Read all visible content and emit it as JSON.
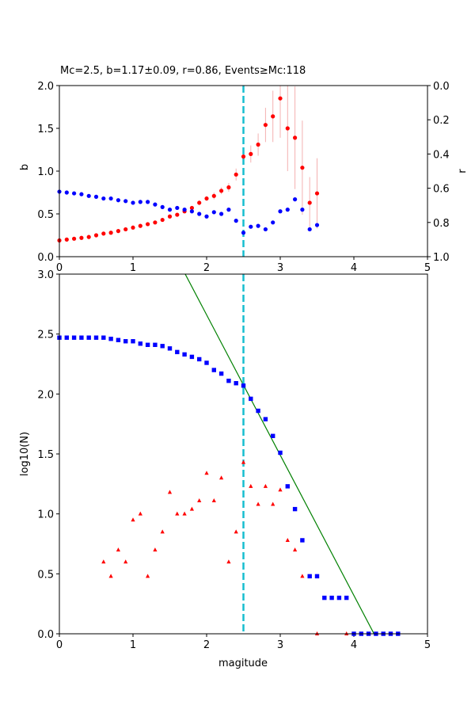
{
  "chart_data": [
    {
      "type": "scatter",
      "title": "Mc=2.5, b=1.17±0.09, r=0.86, Events≥Mc:118",
      "xlabel": "",
      "ylabel": "b",
      "ylabel_right": "r",
      "xlim": [
        0,
        5
      ],
      "ylim": [
        0,
        2.0
      ],
      "ylim_right": [
        1.0,
        0.0
      ],
      "xticks": [
        "0",
        "1",
        "2",
        "3",
        "4",
        "5"
      ],
      "yticks": [
        "0.0",
        "0.5",
        "1.0",
        "1.5",
        "2.0"
      ],
      "yticks_right": [
        "0.0",
        "0.2",
        "0.4",
        "0.6",
        "0.8",
        "1.0"
      ],
      "mc_line": 2.5,
      "colors": {
        "b": "#ff0000",
        "r": "#0000ff",
        "mc": "#17becf",
        "err": "#f4b0b0"
      },
      "x": [
        0,
        0.1,
        0.2,
        0.3,
        0.4,
        0.5,
        0.6,
        0.7,
        0.8,
        0.9,
        1.0,
        1.1,
        1.2,
        1.3,
        1.4,
        1.5,
        1.6,
        1.7,
        1.8,
        1.9,
        2.0,
        2.1,
        2.2,
        2.3,
        2.4,
        2.5,
        2.6,
        2.7,
        2.8,
        2.9,
        3.0,
        3.1,
        3.2,
        3.3,
        3.4,
        3.5
      ],
      "series": [
        {
          "name": "b",
          "axis": "left",
          "values": [
            0.19,
            0.2,
            0.21,
            0.22,
            0.23,
            0.25,
            0.27,
            0.28,
            0.3,
            0.32,
            0.34,
            0.36,
            0.38,
            0.4,
            0.43,
            0.47,
            0.49,
            0.53,
            0.57,
            0.63,
            0.68,
            0.71,
            0.77,
            0.81,
            0.96,
            1.17,
            1.2,
            1.31,
            1.54,
            1.64,
            1.85,
            1.5,
            1.39,
            1.04,
            0.63,
            0.74
          ],
          "errors": [
            0.01,
            0.01,
            0.01,
            0.01,
            0.01,
            0.01,
            0.01,
            0.01,
            0.01,
            0.01,
            0.01,
            0.01,
            0.01,
            0.01,
            0.01,
            0.01,
            0.02,
            0.02,
            0.02,
            0.03,
            0.03,
            0.04,
            0.04,
            0.05,
            0.07,
            0.09,
            0.1,
            0.13,
            0.2,
            0.3,
            0.46,
            0.5,
            0.6,
            0.55,
            0.3,
            0.41
          ]
        },
        {
          "name": "r",
          "axis": "right",
          "values": [
            0.62,
            0.625,
            0.63,
            0.635,
            0.645,
            0.65,
            0.66,
            0.66,
            0.67,
            0.675,
            0.685,
            0.68,
            0.68,
            0.695,
            0.71,
            0.725,
            0.715,
            0.725,
            0.735,
            0.75,
            0.765,
            0.74,
            0.75,
            0.725,
            0.79,
            0.86,
            0.825,
            0.82,
            0.84,
            0.8,
            0.735,
            0.725,
            0.665,
            0.725,
            0.84,
            0.815
          ]
        }
      ]
    },
    {
      "type": "scatter",
      "title": "",
      "xlabel": "magitude",
      "ylabel": "log10(N)",
      "xlim": [
        0,
        5
      ],
      "ylim": [
        0,
        3.0
      ],
      "xticks": [
        "0",
        "1",
        "2",
        "3",
        "4",
        "5"
      ],
      "yticks": [
        "0.0",
        "0.5",
        "1.0",
        "1.5",
        "2.0",
        "2.5",
        "3.0"
      ],
      "mc_line": 2.5,
      "fit_line": {
        "a": 5.0,
        "b": 1.17,
        "color": "#008000"
      },
      "colors": {
        "cumulative": "#0000ff",
        "noncumulative": "#ff0000",
        "mc": "#17becf"
      },
      "series": [
        {
          "name": "cumulative",
          "x": [
            0,
            0.1,
            0.2,
            0.3,
            0.4,
            0.5,
            0.6,
            0.7,
            0.8,
            0.9,
            1.0,
            1.1,
            1.2,
            1.3,
            1.4,
            1.5,
            1.6,
            1.7,
            1.8,
            1.9,
            2.0,
            2.1,
            2.2,
            2.3,
            2.4,
            2.5,
            2.6,
            2.7,
            2.8,
            2.9,
            3.0,
            3.1,
            3.2,
            3.3,
            3.4,
            3.5,
            3.6,
            3.7,
            3.8,
            3.9,
            4.0,
            4.1,
            4.2,
            4.3,
            4.4,
            4.5,
            4.6
          ],
          "values": [
            2.47,
            2.47,
            2.47,
            2.47,
            2.47,
            2.47,
            2.47,
            2.46,
            2.45,
            2.44,
            2.44,
            2.42,
            2.41,
            2.41,
            2.4,
            2.38,
            2.35,
            2.33,
            2.31,
            2.29,
            2.26,
            2.2,
            2.17,
            2.11,
            2.09,
            2.07,
            1.96,
            1.86,
            1.79,
            1.65,
            1.51,
            1.23,
            1.04,
            0.78,
            0.48,
            0.48,
            0.3,
            0.3,
            0.3,
            0.3,
            0,
            0,
            0,
            0,
            0,
            0,
            0
          ]
        },
        {
          "name": "noncumulative",
          "x": [
            0.6,
            0.7,
            0.8,
            0.9,
            1.0,
            1.1,
            1.2,
            1.3,
            1.4,
            1.5,
            1.6,
            1.7,
            1.8,
            1.9,
            2.0,
            2.1,
            2.2,
            2.3,
            2.4,
            2.5,
            2.6,
            2.7,
            2.8,
            2.9,
            3.0,
            3.1,
            3.2,
            3.3,
            3.5,
            3.9
          ],
          "values": [
            0.6,
            0.48,
            0.7,
            0.6,
            0.95,
            1.0,
            0.48,
            0.7,
            0.85,
            1.18,
            1.0,
            1.0,
            1.04,
            1.11,
            1.34,
            1.11,
            1.3,
            0.6,
            0.85,
            1.43,
            1.23,
            1.08,
            1.23,
            1.08,
            1.2,
            0.78,
            0.7,
            0.48,
            0,
            0
          ]
        }
      ]
    }
  ]
}
